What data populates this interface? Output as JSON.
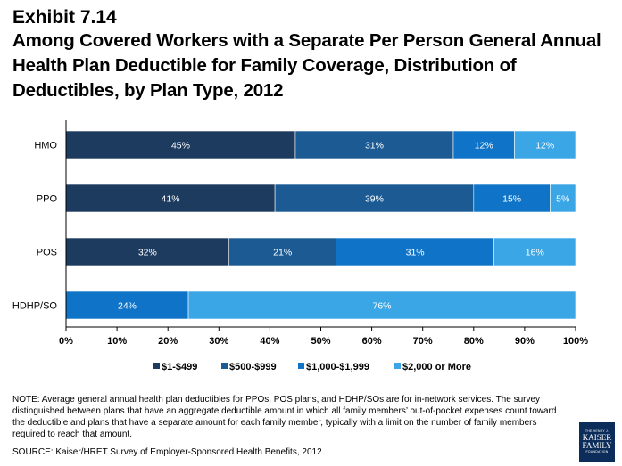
{
  "header": {
    "exhibit": "Exhibit 7.14",
    "title": "Among Covered Workers with a Separate Per Person General Annual Health Plan Deductible for Family Coverage, Distribution of Deductibles, by Plan Type,  2012"
  },
  "chart_data": {
    "type": "bar",
    "orientation": "horizontal",
    "stacked": true,
    "categories": [
      "HMO",
      "PPO",
      "POS",
      "HDHP/SO"
    ],
    "series": [
      {
        "name": "$1-$499",
        "values": [
          45,
          41,
          32,
          0
        ],
        "labels": [
          "45%",
          "41%",
          "32%",
          ""
        ],
        "color": "#1d3a5f"
      },
      {
        "name": "$500-$999",
        "values": [
          31,
          39,
          21,
          0
        ],
        "labels": [
          "31%",
          "39%",
          "21%",
          ""
        ],
        "color": "#1b5a93"
      },
      {
        "name": "$1,000-$1,999",
        "values": [
          12,
          15,
          31,
          24
        ],
        "labels": [
          "12%",
          "15%",
          "31%",
          "24%"
        ],
        "color": "#0f74c8"
      },
      {
        "name": "$2,000 or More",
        "values": [
          12,
          5,
          16,
          76
        ],
        "labels": [
          "12%",
          "5%",
          "16%",
          "76%"
        ],
        "color": "#3aa6e6"
      }
    ],
    "xticks": [
      "0%",
      "10%",
      "20%",
      "30%",
      "40%",
      "50%",
      "60%",
      "70%",
      "80%",
      "90%",
      "100%"
    ],
    "xlim": [
      0,
      100
    ],
    "legend_position": "bottom"
  },
  "note": "NOTE: Average general annual health plan deductibles for PPOs, POS plans, and HDHP/SOs are for in-network services. The survey distinguished between plans that have an aggregate deductible amount in which all family members’ out-of-pocket expenses count toward the deductible and plans that have a separate amount for each family member, typically with a limit on the number of family members required to reach that amount.",
  "source": "SOURCE:  Kaiser/HRET Survey of Employer-Sponsored Health Benefits, 2012.",
  "logo": {
    "line1": "THE HENRY J.",
    "line2": "KAISER",
    "line3": "FAMILY",
    "line4": "FOUNDATION"
  }
}
